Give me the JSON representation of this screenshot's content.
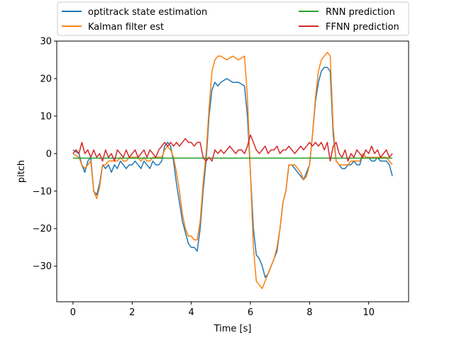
{
  "chart_data": {
    "type": "line",
    "title": "",
    "xlabel": "Time [s]",
    "ylabel": "pitch",
    "xlim": [
      -0.55,
      11.35
    ],
    "ylim": [
      -39.5,
      30
    ],
    "xticks": [
      0,
      2,
      4,
      6,
      8,
      10
    ],
    "yticks": [
      -30,
      -20,
      -10,
      0,
      10,
      20,
      30
    ],
    "grid": false,
    "legend_placement": "top, above plot, 2 columns",
    "series": [
      {
        "name": "optitrack state estimation",
        "color": "#1f77b4",
        "x": [
          0,
          0.1,
          0.2,
          0.3,
          0.4,
          0.5,
          0.6,
          0.7,
          0.8,
          0.9,
          1.0,
          1.1,
          1.2,
          1.3,
          1.4,
          1.5,
          1.6,
          1.7,
          1.8,
          1.9,
          2.0,
          2.1,
          2.2,
          2.3,
          2.4,
          2.5,
          2.6,
          2.7,
          2.8,
          2.9,
          3.0,
          3.1,
          3.2,
          3.3,
          3.4,
          3.5,
          3.6,
          3.7,
          3.8,
          3.9,
          4.0,
          4.1,
          4.2,
          4.3,
          4.4,
          4.5,
          4.6,
          4.7,
          4.8,
          4.9,
          5.0,
          5.2,
          5.4,
          5.6,
          5.8,
          5.9,
          6.0,
          6.1,
          6.2,
          6.3,
          6.4,
          6.5,
          6.6,
          6.7,
          6.8,
          6.9,
          7.0,
          7.1,
          7.2,
          7.3,
          7.4,
          7.5,
          7.6,
          7.7,
          7.8,
          7.9,
          8.0,
          8.1,
          8.2,
          8.3,
          8.4,
          8.5,
          8.6,
          8.7,
          8.8,
          8.9,
          9.0,
          9.1,
          9.2,
          9.3,
          9.4,
          9.5,
          9.6,
          9.7,
          9.8,
          9.9,
          10.0,
          10.1,
          10.2,
          10.3,
          10.4,
          10.5,
          10.6,
          10.7,
          10.8
        ],
        "y": [
          1,
          0.5,
          0,
          -3,
          -5,
          -2,
          -1,
          -10,
          -11,
          -8,
          -3,
          -4,
          -3,
          -5,
          -3,
          -4,
          -2,
          -3,
          -4,
          -3,
          -3,
          -2,
          -3,
          -4,
          -2,
          -3,
          -4,
          -2,
          -3,
          -3,
          -2,
          2,
          3,
          2,
          -2,
          -8,
          -13,
          -18,
          -21,
          -24,
          -25,
          -25,
          -26,
          -20,
          -10,
          -2,
          10,
          17,
          19,
          18,
          19,
          20,
          19,
          19,
          18,
          10,
          -5,
          -20,
          -27,
          -28,
          -30,
          -33,
          -32,
          -30,
          -28,
          -26,
          -20,
          -13,
          -10,
          -3,
          -3,
          -4,
          -5,
          -6,
          -7,
          -5,
          -3,
          5,
          14,
          19,
          22,
          23,
          23,
          22,
          5,
          -2,
          -3,
          -4,
          -4,
          -3,
          -3,
          -2,
          -3,
          -3,
          0,
          -1,
          -1,
          -2,
          -2,
          -1,
          -2,
          -2,
          -2,
          -3,
          -6
        ]
      },
      {
        "name": "Kalman filter est",
        "color": "#ff7f0e",
        "x": [
          0,
          0.1,
          0.2,
          0.3,
          0.4,
          0.5,
          0.6,
          0.7,
          0.8,
          0.9,
          1.0,
          1.1,
          1.2,
          1.3,
          1.4,
          1.5,
          1.6,
          1.7,
          1.8,
          1.9,
          2.0,
          2.1,
          2.2,
          2.3,
          2.4,
          2.5,
          2.6,
          2.7,
          2.8,
          2.9,
          3.0,
          3.1,
          3.2,
          3.3,
          3.4,
          3.5,
          3.6,
          3.7,
          3.8,
          3.9,
          4.0,
          4.1,
          4.2,
          4.3,
          4.4,
          4.5,
          4.6,
          4.7,
          4.8,
          4.9,
          5.0,
          5.2,
          5.4,
          5.6,
          5.8,
          5.9,
          6.0,
          6.1,
          6.2,
          6.3,
          6.4,
          6.5,
          6.6,
          6.7,
          6.8,
          6.9,
          7.0,
          7.1,
          7.2,
          7.3,
          7.4,
          7.5,
          7.6,
          7.7,
          7.8,
          7.9,
          8.0,
          8.1,
          8.2,
          8.3,
          8.4,
          8.5,
          8.6,
          8.7,
          8.8,
          8.9,
          9.0,
          9.1,
          9.2,
          9.3,
          9.4,
          9.5,
          9.6,
          9.7,
          9.8,
          9.9,
          10.0,
          10.1,
          10.2,
          10.3,
          10.4,
          10.5,
          10.6,
          10.7,
          10.8
        ],
        "y": [
          0,
          -0.5,
          -1,
          -3,
          -4,
          -3,
          -2,
          -10,
          -12,
          -9,
          -3,
          -3,
          -2,
          -2,
          -2,
          -2,
          -1,
          -2,
          -2,
          -1,
          -1,
          -1,
          -1,
          -2,
          -1,
          -2,
          -2,
          -1,
          -1,
          -1,
          -1,
          1,
          2,
          1,
          -1,
          -5,
          -10,
          -16,
          -20,
          -22,
          -22,
          -23,
          -23,
          -18,
          -8,
          0,
          12,
          22,
          25,
          26,
          26,
          25,
          26,
          25,
          26,
          15,
          -5,
          -25,
          -34,
          -35,
          -36,
          -34,
          -32,
          -30,
          -28,
          -25,
          -20,
          -13,
          -10,
          -3,
          -3,
          -3,
          -4,
          -5,
          -7,
          -6,
          -3,
          5,
          15,
          22,
          25,
          26,
          27,
          26,
          7,
          -2,
          -3,
          -3,
          -3,
          -3,
          -2,
          -2,
          -2,
          -2,
          0,
          -1,
          -1,
          -1,
          -1,
          -1,
          -1,
          -1,
          -1,
          -2,
          -3
        ]
      },
      {
        "name": "RNN prediction",
        "color": "#2ca02c",
        "x": [
          0,
          1,
          2,
          3,
          4,
          5,
          6,
          7,
          8,
          9,
          10,
          10.8
        ],
        "y": [
          -1.2,
          -1.2,
          -1.2,
          -1.2,
          -1.2,
          -1.2,
          -1.2,
          -1.2,
          -1.2,
          -1.2,
          -1.2,
          -1.2
        ]
      },
      {
        "name": "FFNN prediction",
        "color": "#d62728",
        "x": [
          0,
          0.1,
          0.2,
          0.3,
          0.4,
          0.5,
          0.6,
          0.7,
          0.8,
          0.9,
          1.0,
          1.1,
          1.2,
          1.3,
          1.4,
          1.5,
          1.6,
          1.7,
          1.8,
          1.9,
          2.0,
          2.1,
          2.2,
          2.3,
          2.4,
          2.5,
          2.6,
          2.7,
          2.8,
          2.9,
          3.0,
          3.1,
          3.2,
          3.3,
          3.4,
          3.5,
          3.6,
          3.7,
          3.8,
          3.9,
          4.0,
          4.1,
          4.2,
          4.3,
          4.4,
          4.5,
          4.6,
          4.7,
          4.8,
          4.9,
          5.0,
          5.1,
          5.2,
          5.3,
          5.4,
          5.5,
          5.6,
          5.7,
          5.8,
          5.9,
          6.0,
          6.1,
          6.2,
          6.3,
          6.4,
          6.5,
          6.6,
          6.7,
          6.8,
          6.9,
          7.0,
          7.1,
          7.2,
          7.3,
          7.4,
          7.5,
          7.6,
          7.7,
          7.8,
          7.9,
          8.0,
          8.1,
          8.2,
          8.3,
          8.4,
          8.5,
          8.6,
          8.7,
          8.8,
          8.9,
          9.0,
          9.1,
          9.2,
          9.3,
          9.4,
          9.5,
          9.6,
          9.7,
          9.8,
          9.9,
          10.0,
          10.1,
          10.2,
          10.3,
          10.4,
          10.5,
          10.6,
          10.7,
          10.8
        ],
        "y": [
          0,
          1,
          0,
          3,
          0,
          1,
          -1,
          1,
          -1,
          0,
          -2,
          1,
          -1,
          0,
          -2,
          1,
          0,
          -1,
          1,
          -1,
          0,
          1,
          -1,
          0,
          1,
          -1,
          1,
          0,
          -1,
          1,
          2,
          3,
          2,
          3,
          2,
          3,
          2,
          3,
          4,
          3,
          3,
          2,
          3,
          3,
          -1,
          -2,
          -1,
          -2,
          1,
          0,
          1,
          0,
          1,
          2,
          1,
          0,
          1,
          1,
          0,
          2,
          5,
          3,
          1,
          0,
          1,
          2,
          0,
          1,
          1,
          2,
          0,
          1,
          1,
          2,
          1,
          0,
          1,
          2,
          1,
          2,
          3,
          2,
          3,
          2,
          3,
          1,
          3,
          -2,
          2,
          3,
          0,
          -1,
          1,
          -2,
          0,
          -1,
          1,
          0,
          -1,
          1,
          0,
          2,
          0,
          1,
          -1,
          0,
          1,
          -1,
          0
        ]
      }
    ]
  }
}
